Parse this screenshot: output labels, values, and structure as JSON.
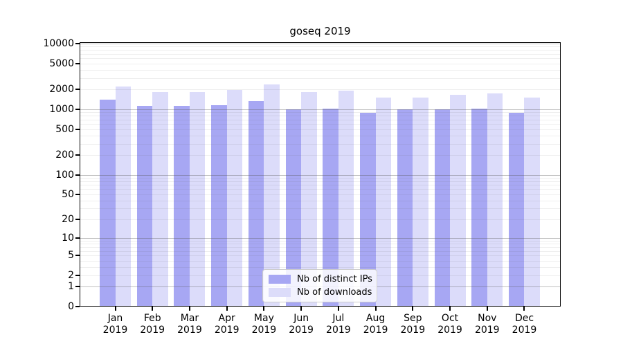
{
  "chart_data": {
    "type": "bar",
    "title": "goseq 2019",
    "categories": [
      "Jan",
      "Feb",
      "Mar",
      "Apr",
      "May",
      "Jun",
      "Jul",
      "Aug",
      "Sep",
      "Oct",
      "Nov",
      "Dec"
    ],
    "category_year": "2019",
    "series": [
      {
        "name": "Nb of distinct IPs",
        "color": "#a7a7f3",
        "values": [
          1420,
          1120,
          1140,
          1160,
          1330,
          1010,
          1030,
          890,
          990,
          1000,
          1030,
          880
        ]
      },
      {
        "name": "Nb of downloads",
        "color": "#dcdcfa",
        "values": [
          2250,
          1830,
          1850,
          1960,
          2400,
          1820,
          1940,
          1520,
          1520,
          1680,
          1760,
          1500
        ]
      }
    ],
    "y_axis": {
      "scale": "log1p",
      "tick_values": [
        0,
        1,
        2,
        5,
        10,
        20,
        50,
        100,
        200,
        500,
        1000,
        2000,
        5000,
        10000
      ],
      "tick_labels": [
        "0",
        "1",
        "2",
        "5",
        "10",
        "20",
        "50",
        "100",
        "200",
        "500",
        "1000",
        "2000",
        "5000",
        "10000"
      ],
      "ylim": [
        0,
        10500
      ]
    },
    "xlabel": "",
    "ylabel": "",
    "legend": {
      "position": "lower center"
    },
    "grid": {
      "major": "powers-of-10",
      "minor": "2-9 per decade",
      "drawn_on_top_of_bars": true,
      "major_color": "#b3b3b3",
      "minor_color": "#e9e9e9"
    }
  }
}
